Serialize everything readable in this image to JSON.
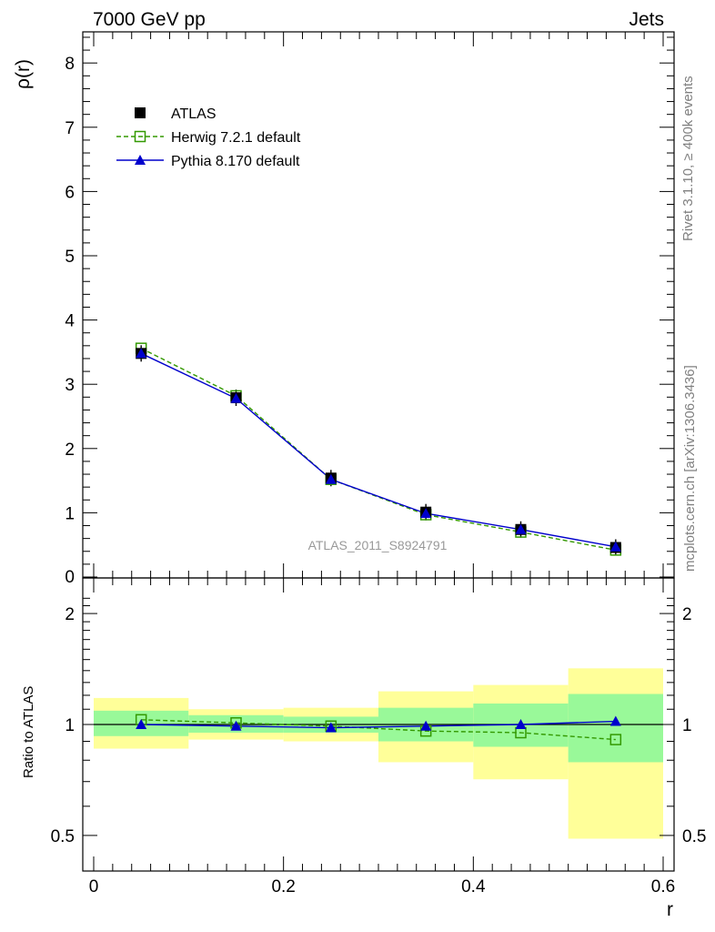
{
  "header": {
    "left": "7000 GeV pp",
    "right": "Jets"
  },
  "side_text": {
    "rivet": "Rivet 3.1.10, ≥ 400k events",
    "mcplots": "mcplots.cern.ch [arXiv:1306.3436]"
  },
  "watermark": "ATLAS_2011_S8924791",
  "colors": {
    "atlas": "#000000",
    "herwig": "#339900",
    "pythia": "#0000cc",
    "band_inner": "#99f999",
    "band_outer": "#ffff99"
  },
  "chart_data": [
    {
      "type": "line",
      "ylabel": "ρ(r)",
      "xlim": [
        0,
        0.6
      ],
      "ylim": [
        0,
        8.5
      ],
      "y_ticks": [
        "0",
        "1",
        "2",
        "3",
        "4",
        "5",
        "6",
        "7",
        "8"
      ],
      "legend_placement": "top-left",
      "x": [
        0.05,
        0.15,
        0.25,
        0.35,
        0.45,
        0.55
      ],
      "series": [
        {
          "name": "ATLAS",
          "marker": "filled-square",
          "values": [
            3.48,
            2.79,
            1.54,
            1.01,
            0.74,
            0.46
          ]
        },
        {
          "name": "Herwig 7.2.1 default",
          "marker": "open-square",
          "line": "dashed",
          "values": [
            3.56,
            2.82,
            1.52,
            0.97,
            0.7,
            0.42
          ]
        },
        {
          "name": "Pythia 8.170 default",
          "marker": "filled-triangle",
          "line": "solid",
          "values": [
            3.48,
            2.78,
            1.52,
            0.99,
            0.74,
            0.47
          ]
        }
      ]
    },
    {
      "type": "line",
      "ylabel": "Ratio to ATLAS",
      "xlabel": "r",
      "xlim": [
        0,
        0.6
      ],
      "ylim": [
        0.35,
        2.3
      ],
      "y_scale": "log",
      "y_ticks": [
        "0.5",
        "1",
        "2"
      ],
      "x_ticks": [
        "0",
        "0.2",
        "0.4",
        "0.6"
      ],
      "bins": [
        [
          0.0,
          0.1
        ],
        [
          0.1,
          0.2
        ],
        [
          0.2,
          0.3
        ],
        [
          0.3,
          0.4
        ],
        [
          0.4,
          0.5
        ],
        [
          0.5,
          0.6
        ]
      ],
      "band_inner": [
        [
          0.93,
          1.09
        ],
        [
          0.95,
          1.06
        ],
        [
          0.95,
          1.05
        ],
        [
          0.9,
          1.11
        ],
        [
          0.87,
          1.14
        ],
        [
          0.79,
          1.21
        ]
      ],
      "band_outer": [
        [
          0.86,
          1.18
        ],
        [
          0.91,
          1.1
        ],
        [
          0.9,
          1.11
        ],
        [
          0.79,
          1.23
        ],
        [
          0.71,
          1.28
        ],
        [
          0.49,
          1.42
        ]
      ],
      "x": [
        0.05,
        0.15,
        0.25,
        0.35,
        0.45,
        0.55
      ],
      "series": [
        {
          "name": "Herwig 7.2.1 default",
          "marker": "open-square",
          "line": "dashed",
          "values": [
            1.03,
            1.01,
            0.99,
            0.96,
            0.95,
            0.91
          ]
        },
        {
          "name": "Pythia 8.170 default",
          "marker": "filled-triangle",
          "line": "solid",
          "values": [
            1.0,
            0.99,
            0.98,
            0.99,
            1.0,
            1.02
          ]
        }
      ]
    }
  ]
}
